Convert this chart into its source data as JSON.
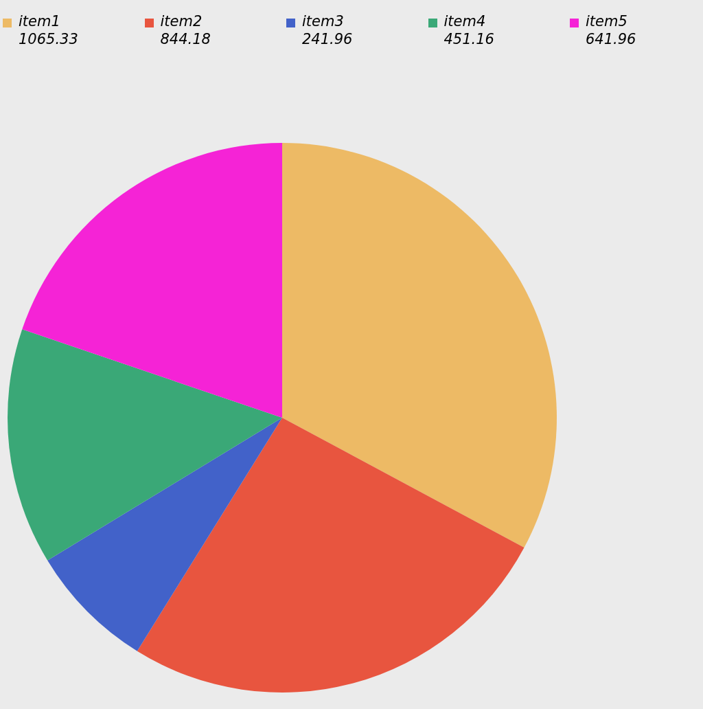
{
  "chart_data": {
    "type": "pie",
    "categories": [
      "item1",
      "item2",
      "item3",
      "item4",
      "item5"
    ],
    "values": [
      1065.33,
      844.18,
      241.96,
      451.16,
      641.96
    ],
    "colors": [
      "#edba65",
      "#e8553f",
      "#4262c9",
      "#3aa877",
      "#f523d6"
    ],
    "legend": "top",
    "data_labels": true
  }
}
